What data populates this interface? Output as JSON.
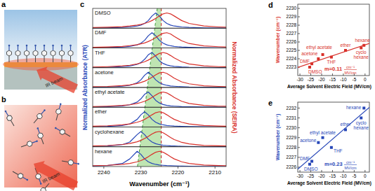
{
  "chart_data": [
    {
      "type": "line",
      "label": "c",
      "x_label": "Wavenumber (cm⁻¹)",
      "y_label": "Normalized Absorbance (ATR)",
      "y2_label": "Normalized Absorbance (SEIRA)",
      "xlim": [
        2243,
        2207
      ],
      "xticks": [
        2240,
        2230,
        2220,
        2210
      ],
      "ylim": [
        0,
        1.3
      ],
      "y2lim": [
        0,
        1.3
      ],
      "tick_labels": "x",
      "reference_line": 2224.5,
      "x": [
        2243,
        2239,
        2235,
        2233,
        2231,
        2230,
        2229,
        2228,
        2227,
        2226,
        2225,
        2224,
        2223,
        2222,
        2221,
        2219,
        2217,
        2213,
        2209,
        2207
      ],
      "rows": [
        {
          "name": "DMSO",
          "series": [
            {
              "color": "#2747b8",
              "values": [
                0.01,
                0.02,
                0.05,
                0.08,
                0.14,
                0.2,
                0.31,
                0.5,
                0.8,
                1,
                0.8,
                0.5,
                0.31,
                0.2,
                0.14,
                0.08,
                0.05,
                0.02,
                0.01,
                0.01
              ]
            },
            {
              "color": "#d8302a",
              "axis": "y2",
              "values": [
                0.04,
                0.06,
                0.1,
                0.14,
                0.2,
                0.25,
                0.31,
                0.39,
                0.5,
                0.64,
                0.8,
                0.94,
                1,
                0.94,
                0.8,
                0.5,
                0.31,
                0.14,
                0.08,
                0.06
              ]
            }
          ]
        },
        {
          "name": "DMF",
          "series": [
            {
              "color": "#2747b8",
              "values": [
                0.02,
                0.03,
                0.06,
                0.1,
                0.2,
                0.31,
                0.5,
                0.8,
                1,
                0.8,
                0.5,
                0.31,
                0.2,
                0.14,
                0.1,
                0.06,
                0.04,
                0.02,
                0.01,
                0.01
              ]
            },
            {
              "color": "#d8302a",
              "axis": "y2",
              "values": [
                0.04,
                0.06,
                0.1,
                0.15,
                0.21,
                0.27,
                0.33,
                0.42,
                0.54,
                0.68,
                0.84,
                0.96,
                1,
                0.92,
                0.76,
                0.47,
                0.29,
                0.13,
                0.08,
                0.06
              ]
            }
          ]
        },
        {
          "name": "THF",
          "series": [
            {
              "color": "#2747b8",
              "values": [
                0.02,
                0.03,
                0.07,
                0.11,
                0.22,
                0.34,
                0.55,
                0.85,
                1,
                0.75,
                0.45,
                0.28,
                0.18,
                0.12,
                0.09,
                0.05,
                0.03,
                0.02,
                0.01,
                0.01
              ]
            },
            {
              "color": "#d8302a",
              "axis": "y2",
              "values": [
                0.04,
                0.07,
                0.12,
                0.16,
                0.25,
                0.31,
                0.39,
                0.5,
                0.64,
                0.8,
                0.94,
                1,
                0.94,
                0.8,
                0.64,
                0.39,
                0.25,
                0.12,
                0.07,
                0.06
              ]
            }
          ]
        },
        {
          "name": "acetone",
          "series": [
            {
              "color": "#2747b8",
              "values": [
                0.02,
                0.03,
                0.08,
                0.14,
                0.31,
                0.5,
                0.8,
                1,
                0.8,
                0.5,
                0.31,
                0.2,
                0.14,
                0.1,
                0.08,
                0.05,
                0.03,
                0.02,
                0.01,
                0.01
              ]
            },
            {
              "color": "#d8302a",
              "axis": "y2",
              "values": [
                0.05,
                0.07,
                0.12,
                0.17,
                0.26,
                0.33,
                0.41,
                0.53,
                0.67,
                0.83,
                0.96,
                1,
                0.92,
                0.77,
                0.61,
                0.37,
                0.24,
                0.11,
                0.07,
                0.05
              ]
            }
          ]
        },
        {
          "name": "ethyl acetate",
          "series": [
            {
              "color": "#2747b8",
              "values": [
                0.02,
                0.04,
                0.09,
                0.16,
                0.34,
                0.55,
                0.85,
                1,
                0.75,
                0.45,
                0.28,
                0.18,
                0.12,
                0.09,
                0.07,
                0.04,
                0.03,
                0.02,
                0.01,
                0.01
              ]
            },
            {
              "color": "#d8302a",
              "axis": "y2",
              "values": [
                0.04,
                0.07,
                0.12,
                0.16,
                0.25,
                0.31,
                0.39,
                0.5,
                0.64,
                0.8,
                0.94,
                1,
                0.94,
                0.8,
                0.64,
                0.39,
                0.25,
                0.12,
                0.07,
                0.06
              ]
            }
          ]
        },
        {
          "name": "ether",
          "series": [
            {
              "color": "#2747b8",
              "values": [
                0.02,
                0.04,
                0.1,
                0.2,
                0.5,
                0.8,
                1,
                0.8,
                0.5,
                0.31,
                0.2,
                0.14,
                0.1,
                0.08,
                0.06,
                0.04,
                0.03,
                0.02,
                0.01,
                0.01
              ]
            },
            {
              "color": "#d8302a",
              "axis": "y2",
              "values": [
                0.05,
                0.08,
                0.14,
                0.2,
                0.31,
                0.39,
                0.5,
                0.64,
                0.8,
                0.94,
                1,
                0.94,
                0.8,
                0.64,
                0.5,
                0.31,
                0.2,
                0.1,
                0.06,
                0.05
              ]
            }
          ]
        },
        {
          "name": "cyclohexane",
          "series": [
            {
              "color": "#2747b8",
              "values": [
                0.02,
                0.05,
                0.14,
                0.31,
                0.8,
                1,
                0.8,
                0.5,
                0.31,
                0.2,
                0.14,
                0.1,
                0.08,
                0.06,
                0.05,
                0.03,
                0.02,
                0.01,
                0.01,
                0.01
              ]
            },
            {
              "color": "#d8302a",
              "axis": "y2",
              "values": [
                0.05,
                0.08,
                0.15,
                0.21,
                0.33,
                0.42,
                0.54,
                0.68,
                0.84,
                0.96,
                1,
                0.92,
                0.77,
                0.61,
                0.47,
                0.29,
                0.19,
                0.09,
                0.06,
                0.05
              ]
            }
          ]
        },
        {
          "name": "hexane",
          "series": [
            {
              "color": "#2747b8",
              "values": [
                0.03,
                0.06,
                0.2,
                0.5,
                1,
                0.8,
                0.5,
                0.31,
                0.2,
                0.14,
                0.1,
                0.08,
                0.06,
                0.05,
                0.04,
                0.03,
                0.02,
                0.01,
                0.01,
                0.01
              ]
            },
            {
              "color": "#d8302a",
              "axis": "y2",
              "values": [
                0.05,
                0.08,
                0.14,
                0.2,
                0.31,
                0.39,
                0.5,
                0.64,
                0.8,
                0.94,
                1,
                0.94,
                0.8,
                0.64,
                0.5,
                0.31,
                0.2,
                0.1,
                0.06,
                0.05
              ]
            }
          ]
        }
      ]
    },
    {
      "type": "scatter",
      "label": "d",
      "x_label": "Average Solvent Electric Field (MV/cm)",
      "y_label": "Wavenumber (cm⁻¹)",
      "color": "#d8302a",
      "marker": "square",
      "xlim": [
        -31,
        2
      ],
      "xticks": [
        -30,
        -25,
        -20,
        -15,
        -10,
        -5,
        0
      ],
      "ylim": [
        2222,
        2230.5
      ],
      "yticks": [
        2223,
        2224,
        2225,
        2226,
        2227,
        2228,
        2229,
        2230
      ],
      "point_labels": [
        "DMSO",
        "DMF",
        "acetone",
        "ethyl acetate",
        "THF",
        "ether",
        "cyclo\nhexane",
        "hexane"
      ],
      "x": [
        -25.5,
        -24.5,
        -21.5,
        -19.5,
        -15.5,
        -9,
        -1.8,
        -0.5
      ],
      "values": [
        2223.0,
        2223.4,
        2224.0,
        2224.5,
        2224.2,
        2225.0,
        2225.3,
        2225.6
      ],
      "annotation": {
        "text": "m=0.11",
        "unit_top": "cm⁻¹",
        "unit_bottom": "MV/cm"
      }
    },
    {
      "type": "scatter",
      "label": "e",
      "x_label": "Average Solvent Electric Field (MV/cm)",
      "y_label": "Wavenumber (cm⁻¹)",
      "color": "#2747b8",
      "marker": "square",
      "xlim": [
        -31,
        2
      ],
      "xticks": [
        -30,
        -25,
        -20,
        -15,
        -10,
        -5,
        0
      ],
      "ylim": [
        2225.5,
        2232.6
      ],
      "yticks": [
        2226,
        2227,
        2228,
        2229,
        2230,
        2231,
        2232
      ],
      "point_labels": [
        "DMSO",
        "DMF",
        "acetone",
        "ethyl acetate",
        "THF",
        "ether",
        "cyclo\nhexane",
        "hexane"
      ],
      "x": [
        -25.5,
        -24.5,
        -21.5,
        -19.5,
        -15.5,
        -9,
        -1.8,
        -0.5
      ],
      "values": [
        2226.3,
        2226.6,
        2228.5,
        2229.0,
        2228.0,
        2229.8,
        2231.0,
        2232.0
      ],
      "annotation": {
        "text": "m=0.23",
        "unit_top": "cm⁻¹",
        "unit_bottom": "MV/cm"
      }
    }
  ],
  "schematics": [
    {
      "label": "a",
      "beam_label": "IR beam"
    },
    {
      "label": "b",
      "beam_label": "IR beam"
    }
  ]
}
